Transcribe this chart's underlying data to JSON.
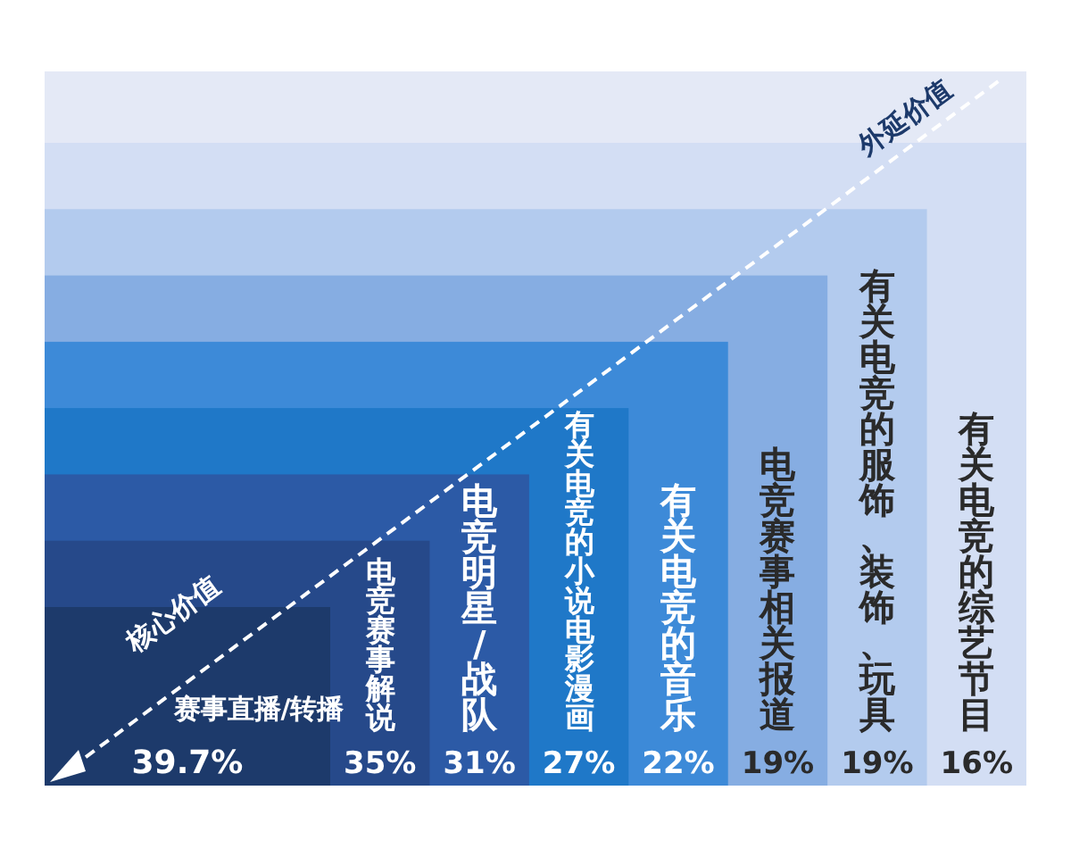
{
  "chart_data": {
    "type": "other",
    "categories": [
      "赛事直播/转播",
      "电竞赛事解说",
      "电竞明星/战队",
      "有关电竞的小说电影漫画",
      "有关电竞的音乐",
      "电竞赛事相关报道",
      "有关电竞的服饰、装饰、玩具",
      "有关电竞的综艺节目"
    ],
    "values": [
      39.7,
      35,
      31,
      27,
      22,
      19,
      19,
      16
    ],
    "value_labels": [
      "39.7%",
      "35%",
      "31%",
      "27%",
      "22%",
      "19%",
      "19%",
      "16%"
    ],
    "colors": [
      "#1d3a6b",
      "#26498a",
      "#2c5aa6",
      "#1f78c8",
      "#3d8ad8",
      "#86ade2",
      "#b3cbee",
      "#d3def4"
    ],
    "annotations": [
      "核心价值",
      "外延价值"
    ]
  }
}
